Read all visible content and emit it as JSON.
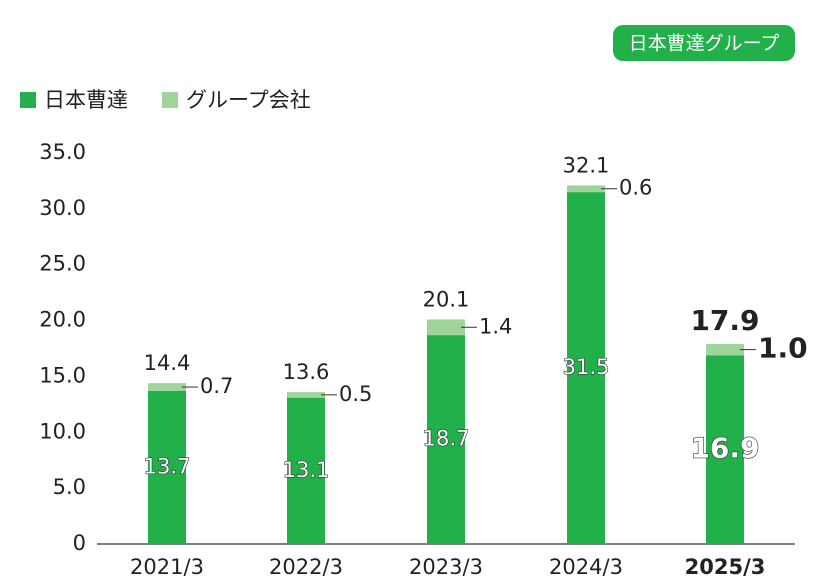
{
  "chart_data": {
    "type": "stacked_bar",
    "badge": "日本曹達グループ",
    "categories": [
      "2021/3",
      "2022/3",
      "2023/3",
      "2024/3",
      "2025/3"
    ],
    "series": [
      {
        "name": "日本曹達",
        "color": "#22b04b",
        "values": [
          13.7,
          13.1,
          18.7,
          31.5,
          16.9
        ]
      },
      {
        "name": "グループ会社",
        "color": "#9fd59b",
        "values": [
          0.7,
          0.5,
          1.4,
          0.6,
          1.0
        ],
        "value_labels": [
          "0.7",
          "0.5",
          "1.4",
          "0.6",
          "1.0"
        ]
      }
    ],
    "total_labels": [
      14.4,
      13.6,
      20.1,
      32.1,
      17.9
    ],
    "ylim": [
      0,
      35
    ],
    "yticks": [
      0,
      {
        "value": 5,
        "label": "5.0"
      },
      {
        "value": 10,
        "label": "10.0"
      },
      {
        "value": 15,
        "label": "15.0"
      },
      {
        "value": 20,
        "label": "20.0"
      },
      {
        "value": 25,
        "label": "25.0"
      },
      {
        "value": 30,
        "label": "30.0"
      },
      {
        "value": 35,
        "label": "35.0"
      }
    ],
    "grid": false
  }
}
